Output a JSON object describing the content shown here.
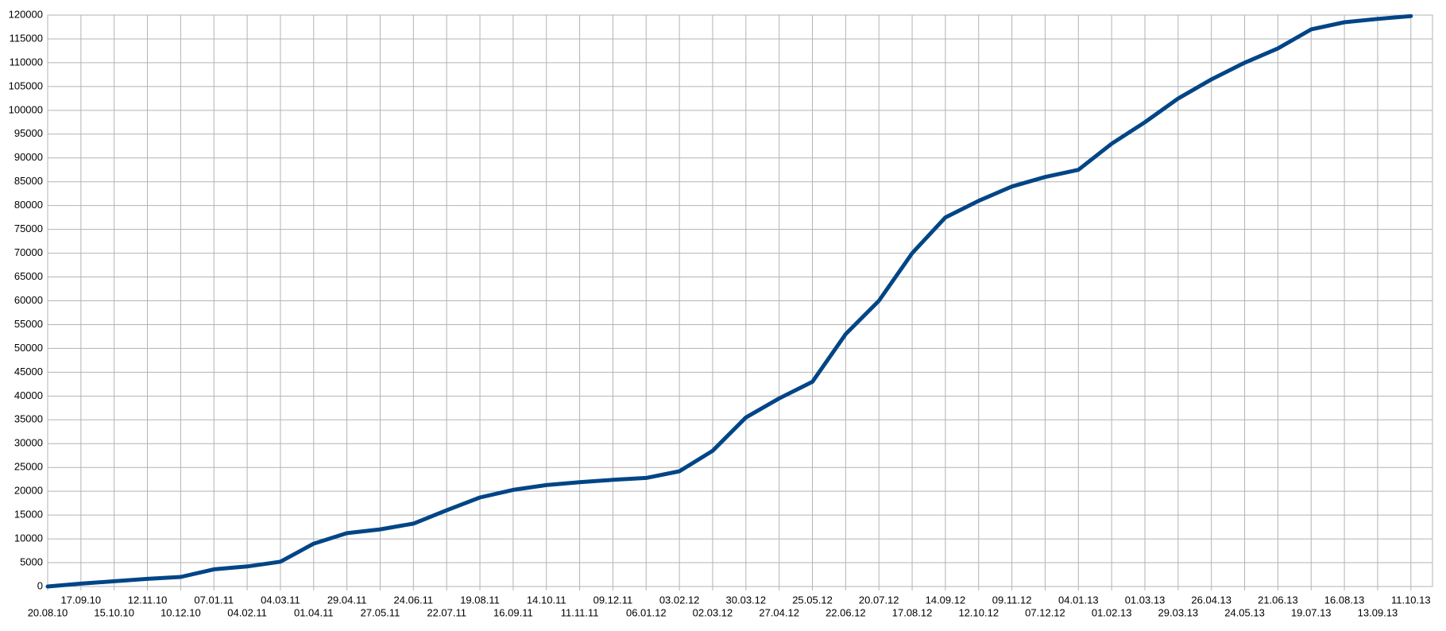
{
  "chart_data": {
    "type": "line",
    "categories": [
      "20.08.10",
      "17.09.10",
      "15.10.10",
      "12.11.10",
      "10.12.10",
      "07.01.11",
      "04.02.11",
      "04.03.11",
      "01.04.11",
      "29.04.11",
      "27.05.11",
      "24.06.11",
      "22.07.11",
      "19.08.11",
      "16.09.11",
      "14.10.11",
      "11.11.11",
      "09.12.11",
      "06.01.12",
      "03.02.12",
      "02.03.12",
      "30.03.12",
      "27.04.12",
      "25.05.12",
      "22.06.12",
      "20.07.12",
      "17.08.12",
      "14.09.12",
      "12.10.12",
      "09.11.12",
      "07.12.12",
      "04.01.13",
      "01.02.13",
      "01.03.13",
      "29.03.13",
      "26.04.13",
      "24.05.13",
      "21.06.13",
      "19.07.13",
      "16.08.13",
      "13.09.13",
      "11.10.13"
    ],
    "series": [
      {
        "color": "#004586",
        "values": [
          0,
          600,
          1100,
          1600,
          2000,
          3600,
          4200,
          5200,
          9000,
          11200,
          12000,
          13200,
          16000,
          18700,
          20300,
          21300,
          21900,
          22400,
          22800,
          24200,
          28500,
          35500,
          39500,
          43000,
          53000,
          60000,
          70000,
          77500,
          81000,
          84000,
          86000,
          87500,
          93000,
          97500,
          102500,
          106500,
          110000,
          113000,
          117000,
          118500,
          119200,
          119800
        ]
      }
    ],
    "ylim": [
      0,
      120000
    ],
    "yticks": [
      0,
      5000,
      10000,
      15000,
      20000,
      25000,
      30000,
      35000,
      40000,
      45000,
      50000,
      55000,
      60000,
      65000,
      70000,
      75000,
      80000,
      85000,
      90000,
      95000,
      100000,
      105000,
      110000,
      115000,
      120000
    ],
    "grid": true
  }
}
